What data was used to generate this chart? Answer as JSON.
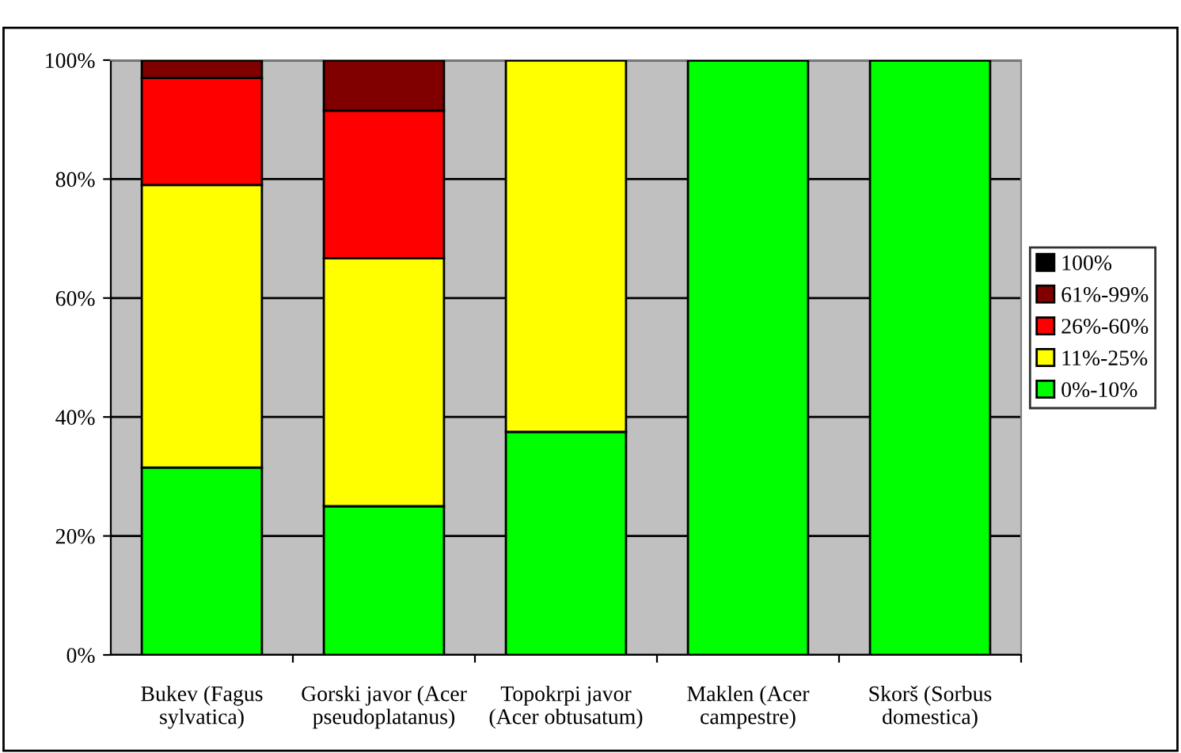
{
  "chart_data": {
    "type": "bar",
    "stacked": true,
    "categories": [
      "Bukev (Fagus\nsylvatica)",
      "Gorski javor (Acer\npseudoplatanus)",
      "Topokrpi javor\n(Acer obtusatum)",
      "Maklen (Acer\ncampestre)",
      "Skorš (Sorbus\ndomestica)"
    ],
    "series": [
      {
        "name": "0%-10%",
        "color": "#00ff00",
        "values": [
          31.5,
          25,
          37.5,
          100,
          100
        ]
      },
      {
        "name": "11%-25%",
        "color": "#ffff00",
        "values": [
          47.5,
          41.7,
          62.5,
          0,
          0
        ]
      },
      {
        "name": "26%-60%",
        "color": "#ff0000",
        "values": [
          18,
          24.8,
          0,
          0,
          0
        ]
      },
      {
        "name": "61%-99%",
        "color": "#800000",
        "values": [
          3,
          8.5,
          0,
          0,
          0
        ]
      },
      {
        "name": "100%",
        "color": "#000000",
        "values": [
          0,
          0,
          0,
          0,
          0
        ]
      }
    ],
    "ylim": [
      0,
      100
    ],
    "yticks": [
      {
        "value": 0,
        "label": "0%"
      },
      {
        "value": 20,
        "label": "20%"
      },
      {
        "value": 40,
        "label": "40%"
      },
      {
        "value": 60,
        "label": "60%"
      },
      {
        "value": 80,
        "label": "80%"
      },
      {
        "value": 100,
        "label": "100%"
      }
    ],
    "grid": "y",
    "legend": "right"
  }
}
